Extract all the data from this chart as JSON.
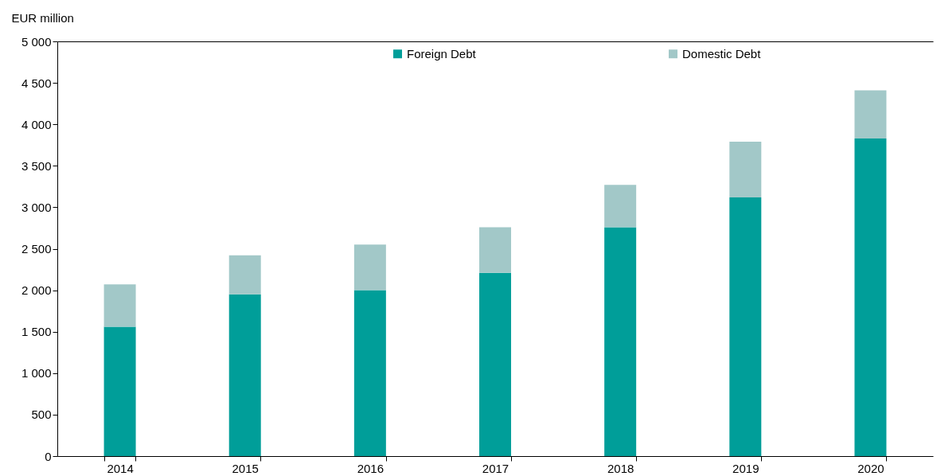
{
  "chart_data": {
    "type": "bar",
    "ylabel": "EUR million",
    "stacked": true,
    "categories": [
      "2014",
      "2015",
      "2016",
      "2017",
      "2018",
      "2019",
      "2020"
    ],
    "series": [
      {
        "name": "Foreign Debt",
        "color": "#009e99",
        "values": [
          1560,
          1950,
          2000,
          2210,
          2760,
          3120,
          3830
        ]
      },
      {
        "name": "Domestic Debt",
        "color": "#a2c8c8",
        "values": [
          510,
          470,
          550,
          550,
          510,
          670,
          580
        ]
      }
    ],
    "ylim": [
      0,
      5000
    ],
    "yticks": [
      0,
      500,
      {
        "value": 1000,
        "label": "1 000"
      },
      {
        "value": 1500,
        "label": "1 500"
      },
      {
        "value": 2000,
        "label": "2 000"
      },
      {
        "value": 2500,
        "label": "2 500"
      },
      {
        "value": 3000,
        "label": "3 000"
      },
      {
        "value": 3500,
        "label": "3 500"
      },
      {
        "value": 4000,
        "label": "4 000"
      },
      {
        "value": 4500,
        "label": "4 500"
      },
      {
        "value": 5000,
        "label": "5 000"
      }
    ],
    "grid": false,
    "legend": "top"
  }
}
